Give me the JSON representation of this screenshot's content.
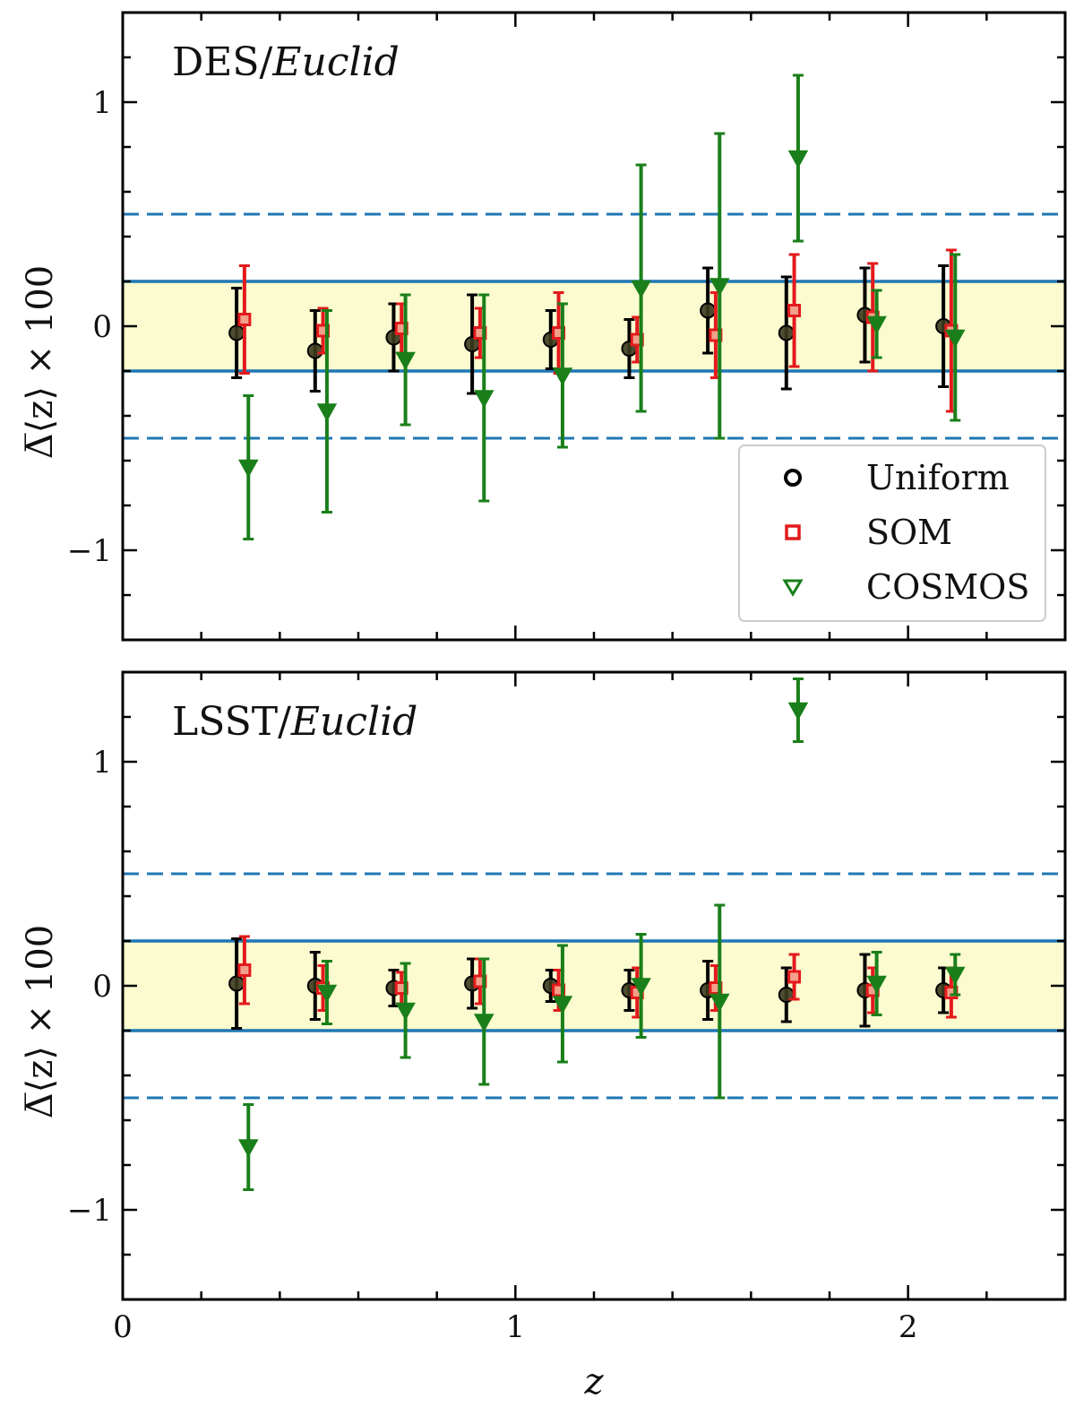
{
  "chart_data": [
    {
      "type": "scatter",
      "panel": "top",
      "title": "DES/",
      "title_italic": "Euclid",
      "xlabel": "z",
      "ylabel": "Δ̅⟨z⟩ × 100",
      "xlim": [
        0,
        2.4
      ],
      "ylim": [
        -1.4,
        1.4
      ],
      "xticks": [
        {
          "v": 0,
          "label": "0"
        },
        {
          "v": 1,
          "label": "1"
        },
        {
          "v": 2,
          "label": "2"
        }
      ],
      "yticks": [
        {
          "v": -1,
          "label": "−1"
        },
        {
          "v": 0,
          "label": "0"
        },
        {
          "v": 1,
          "label": "1"
        }
      ],
      "band": [
        -0.2,
        0.2
      ],
      "solid_lines": [
        0.2,
        -0.2
      ],
      "dashed_lines": [
        0.5,
        -0.5
      ],
      "legend": {
        "position": "lower-right",
        "entries": [
          "Uniform",
          "SOM",
          "COSMOS"
        ]
      },
      "series": [
        {
          "name": "Uniform",
          "marker": "circle",
          "color": "#000000",
          "offset": -0.01,
          "x": [
            0.3,
            0.5,
            0.7,
            0.9,
            1.1,
            1.3,
            1.5,
            1.7,
            1.9,
            2.1
          ],
          "y": [
            -0.03,
            -0.11,
            -0.05,
            -0.08,
            -0.06,
            -0.1,
            0.07,
            -0.03,
            0.05,
            0.0
          ],
          "err": [
            0.2,
            0.18,
            0.15,
            0.22,
            0.13,
            0.13,
            0.19,
            0.25,
            0.21,
            0.27
          ]
        },
        {
          "name": "SOM",
          "marker": "square",
          "color": "#e31a1c",
          "offset": 0.01,
          "x": [
            0.3,
            0.5,
            0.7,
            0.9,
            1.1,
            1.3,
            1.5,
            1.7,
            1.9,
            2.1
          ],
          "y": [
            0.03,
            -0.02,
            -0.01,
            -0.03,
            -0.03,
            -0.06,
            -0.04,
            0.07,
            0.04,
            -0.02
          ],
          "err": [
            0.24,
            0.1,
            0.11,
            0.11,
            0.18,
            0.1,
            0.19,
            0.25,
            0.24,
            0.36
          ]
        },
        {
          "name": "COSMOS",
          "marker": "triangle-down",
          "color": "#1a7f1a",
          "offset": 0.02,
          "x": [
            0.3,
            0.5,
            0.7,
            0.9,
            1.1,
            1.3,
            1.5,
            1.7,
            1.9,
            2.1
          ],
          "y": [
            -0.63,
            -0.38,
            -0.15,
            -0.32,
            -0.22,
            0.17,
            0.18,
            0.75,
            0.01,
            -0.05
          ],
          "err": [
            0.32,
            0.45,
            0.29,
            0.46,
            0.32,
            0.55,
            0.68,
            0.37,
            0.15,
            0.37
          ]
        }
      ]
    },
    {
      "type": "scatter",
      "panel": "bottom",
      "title": "LSST/",
      "title_italic": "Euclid",
      "xlabel": "z",
      "ylabel": "Δ̅⟨z⟩ × 100",
      "xlim": [
        0,
        2.4
      ],
      "ylim": [
        -1.4,
        1.4
      ],
      "xticks": [
        {
          "v": 0,
          "label": "0"
        },
        {
          "v": 1,
          "label": "1"
        },
        {
          "v": 2,
          "label": "2"
        }
      ],
      "yticks": [
        {
          "v": -1,
          "label": "−1"
        },
        {
          "v": 0,
          "label": "0"
        },
        {
          "v": 1,
          "label": "1"
        }
      ],
      "band": [
        -0.2,
        0.2
      ],
      "solid_lines": [
        0.2,
        -0.2
      ],
      "dashed_lines": [
        0.5,
        -0.5
      ],
      "series": [
        {
          "name": "Uniform",
          "marker": "circle",
          "color": "#000000",
          "offset": -0.01,
          "x": [
            0.3,
            0.5,
            0.7,
            0.9,
            1.1,
            1.3,
            1.5,
            1.7,
            1.9,
            2.1
          ],
          "y": [
            0.01,
            0.0,
            -0.01,
            0.01,
            0.0,
            -0.02,
            -0.02,
            -0.04,
            -0.02,
            -0.02
          ],
          "err": [
            0.2,
            0.15,
            0.08,
            0.11,
            0.07,
            0.09,
            0.13,
            0.12,
            0.16,
            0.1
          ]
        },
        {
          "name": "SOM",
          "marker": "square",
          "color": "#e31a1c",
          "offset": 0.01,
          "x": [
            0.3,
            0.5,
            0.7,
            0.9,
            1.1,
            1.3,
            1.5,
            1.7,
            1.9,
            2.1
          ],
          "y": [
            0.07,
            -0.01,
            -0.01,
            0.02,
            -0.02,
            -0.03,
            -0.01,
            0.04,
            -0.02,
            -0.03
          ],
          "err": [
            0.15,
            0.1,
            0.07,
            0.1,
            0.09,
            0.11,
            0.1,
            0.1,
            0.1,
            0.11
          ]
        },
        {
          "name": "COSMOS",
          "marker": "triangle-down",
          "color": "#1a7f1a",
          "offset": 0.02,
          "x": [
            0.3,
            0.5,
            0.7,
            0.9,
            1.1,
            1.3,
            1.5,
            1.7,
            1.9,
            2.1
          ],
          "y": [
            -0.72,
            -0.03,
            -0.11,
            -0.16,
            -0.08,
            0.0,
            -0.07,
            1.23,
            0.01,
            0.05
          ],
          "err": [
            0.19,
            0.14,
            0.21,
            0.28,
            0.26,
            0.23,
            0.43,
            0.14,
            0.14,
            0.09
          ]
        }
      ]
    }
  ]
}
